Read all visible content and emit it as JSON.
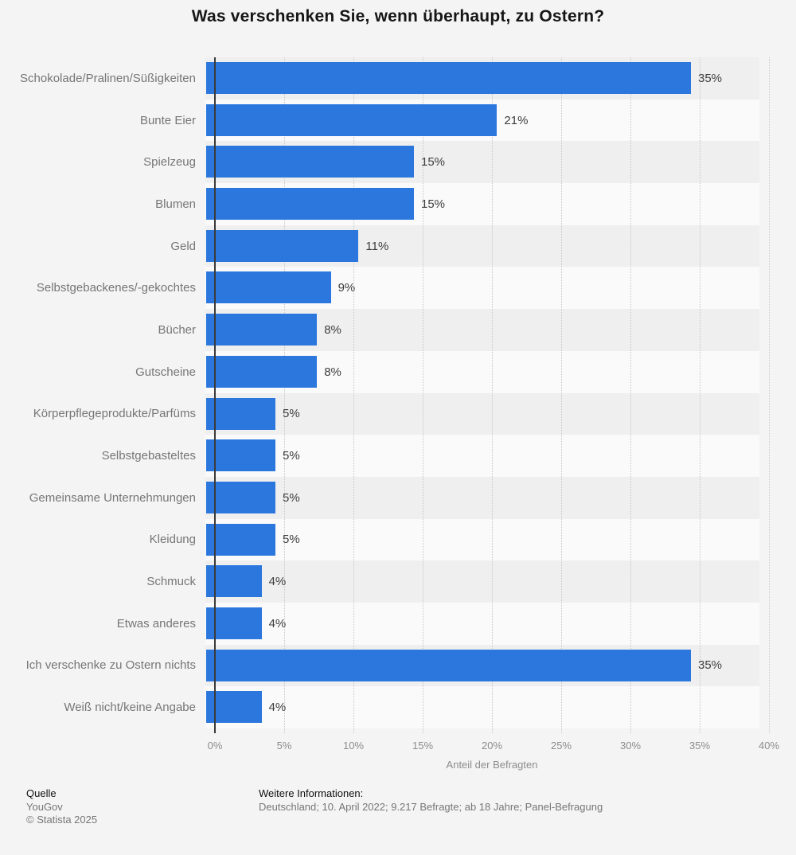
{
  "title": "Was verschenken Sie, wenn überhaupt, zu Ostern?",
  "chart_data": {
    "type": "bar",
    "orientation": "horizontal",
    "title": "Was verschenken Sie, wenn überhaupt, zu Ostern?",
    "categories": [
      "Schokolade/Pralinen/Süßigkeiten",
      "Bunte Eier",
      "Spielzeug",
      "Blumen",
      "Geld",
      "Selbstgebackenes/-gekochtes",
      "Bücher",
      "Gutscheine",
      "Körperpflegeprodukte/Parfüms",
      "Selbstgebasteltes",
      "Gemeinsame Unternehmungen",
      "Kleidung",
      "Schmuck",
      "Etwas anderes",
      "Ich verschenke zu Ostern nichts",
      "Weiß nicht/keine Angabe"
    ],
    "values": [
      35,
      21,
      15,
      15,
      11,
      9,
      8,
      8,
      5,
      5,
      5,
      5,
      4,
      4,
      35,
      4
    ],
    "value_suffix": "%",
    "xlabel": "Anteil der Befragten",
    "ylabel": "",
    "xlim": [
      0,
      40
    ],
    "xticks": [
      "0%",
      "5%",
      "10%",
      "15%",
      "20%",
      "25%",
      "30%",
      "35%",
      "40%"
    ],
    "grid": "vertical-dotted",
    "legend": "none"
  },
  "colors": {
    "bar": "#2b77de",
    "row_stripe_dark": "#efefef",
    "row_stripe_light": "#fafafa",
    "page_background": "#f4f4f4",
    "axis_line": "#3a3a3a",
    "gridline": "#c6c6c6",
    "category_label": "#767676",
    "value_label": "#3d3d3d",
    "tick_label": "#8c8c8c"
  },
  "footer": {
    "source_label": "Quelle",
    "source_name": "YouGov",
    "copyright": "© Statista 2025",
    "info_label": "Weitere Informationen:",
    "info_text": "Deutschland; 10. April 2022; 9.217 Befragte; ab 18 Jahre; Panel-Befragung"
  }
}
